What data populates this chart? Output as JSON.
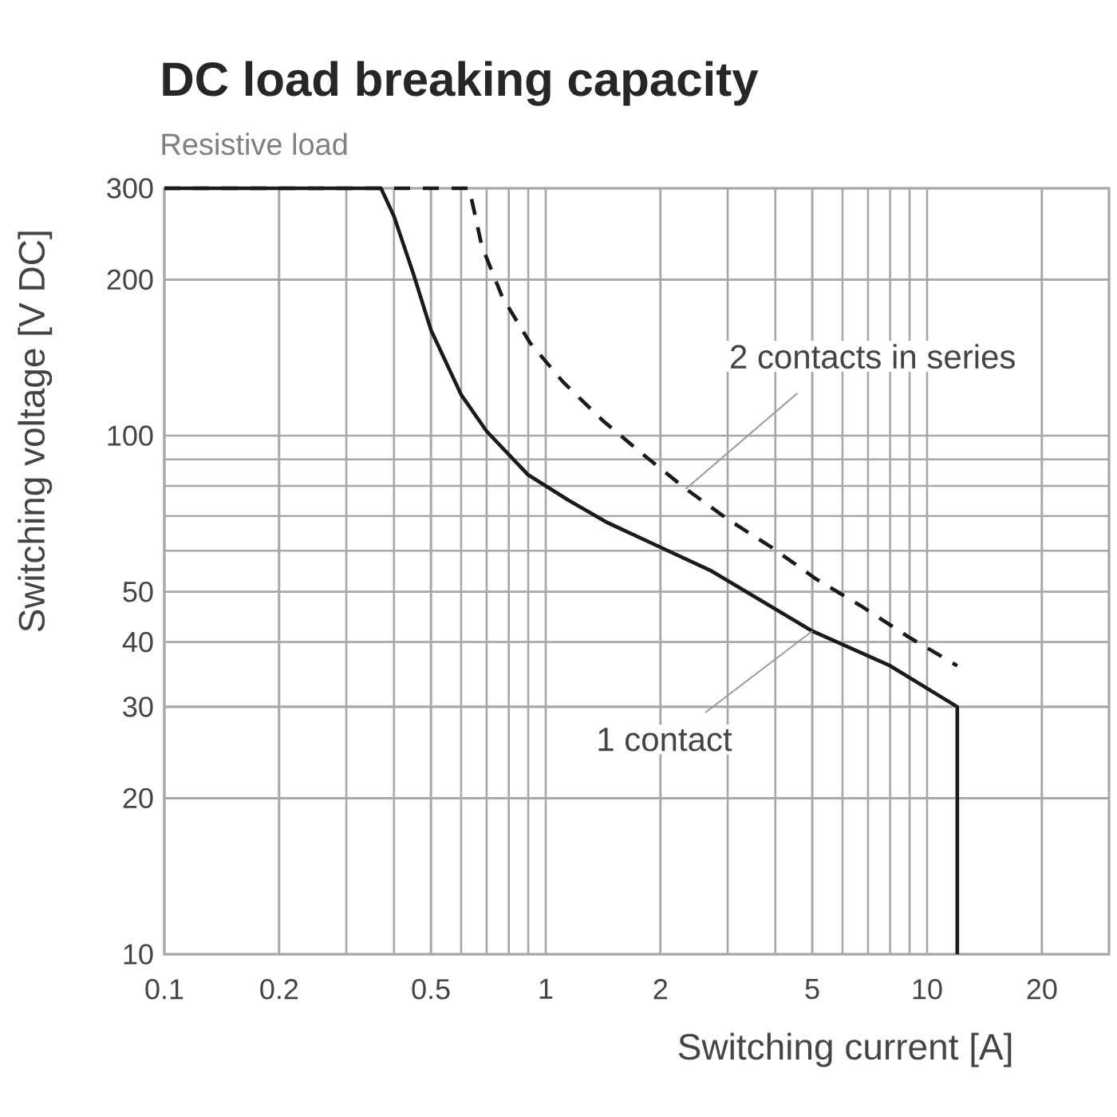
{
  "chart_data": {
    "type": "line",
    "title": "DC load breaking capacity",
    "subtitle": "Resistive load",
    "xlabel": "Switching current [A]",
    "ylabel": "Switching voltage [V DC]",
    "series": [
      {
        "color": "#1a1a1a",
        "line_style": "solid",
        "x": [
          0.1,
          0.37,
          0.4,
          0.45,
          0.5,
          0.6,
          0.7,
          0.9,
          1.15,
          1.45,
          1.9,
          2.7,
          5,
          8,
          12,
          12
        ],
        "values": [
          300,
          300,
          265,
          205,
          160,
          120,
          102,
          84,
          75,
          68,
          62,
          55,
          42,
          36,
          30,
          10
        ]
      },
      {
        "color": "#1a1a1a",
        "line_style": "dashed",
        "x": [
          0.1,
          0.63,
          0.68,
          0.77,
          0.91,
          1.11,
          1.41,
          1.8,
          2.33,
          3,
          3.9,
          5.1,
          6.7,
          8.9,
          12
        ],
        "values": [
          300,
          300,
          232,
          185,
          151,
          127,
          107,
          92,
          79,
          69,
          61,
          53,
          47,
          41,
          36
        ]
      }
    ],
    "annotations": [
      {
        "text": "1 contact",
        "x": 5,
        "y": 42
      },
      {
        "text": "2 contacts in series",
        "x": 2.33,
        "y": 79
      }
    ],
    "xlim": [
      0.1,
      30
    ],
    "ylim": [
      10,
      300
    ],
    "xticks": [
      0.1,
      0.2,
      0.5,
      1,
      2,
      5,
      10,
      20
    ],
    "yticks": [
      10,
      20,
      30,
      40,
      50,
      100,
      200,
      300
    ],
    "log": "xy",
    "grid": true,
    "marker": "none"
  }
}
